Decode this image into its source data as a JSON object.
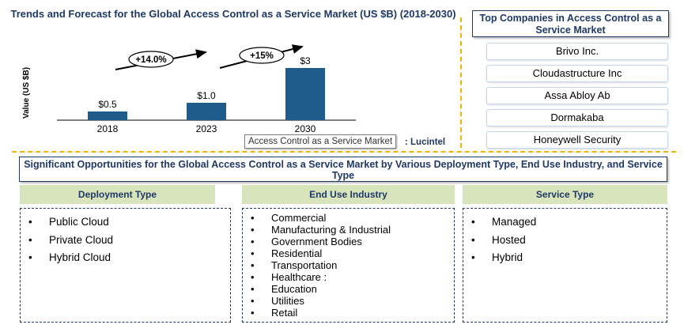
{
  "chart_data": {
    "type": "bar",
    "title": "Trends and Forecast for the Global Access Control as a Service Market (US $B) (2018-2030)",
    "ylabel": "Value (US $B)",
    "categories": [
      "2018",
      "2023",
      "2030"
    ],
    "values": [
      0.5,
      1.0,
      3.0
    ],
    "data_labels": [
      "$0.5",
      "$1.0",
      "$3"
    ],
    "growth_labels": [
      "+14.0%",
      "+15%"
    ],
    "bar_color": "#1f5c8b"
  },
  "tooltip": "Access Control as a Service Market",
  "source": ": Lucintel",
  "companies": {
    "title": "Top Companies in Access Control as a Service Market",
    "items": [
      "Brivo Inc.",
      "Cloudastructure Inc",
      "Assa Abloy Ab",
      "Dormakaba",
      "Honeywell Security"
    ]
  },
  "opportunities": {
    "title": "Significant Opportunities for the Global Access Control as a Service Market by Various Deployment Type, End Use Industry, and Service Type",
    "deployment": {
      "header": "Deployment Type",
      "items": [
        "Public Cloud",
        "Private Cloud",
        "Hybrid Cloud"
      ]
    },
    "end_use": {
      "header": "End Use Industry",
      "items": [
        "Commercial",
        "Manufacturing & Industrial",
        "Government Bodies",
        "Residential",
        "Transportation",
        "Healthcare :",
        "Education",
        "Utilities",
        "Retail"
      ]
    },
    "service": {
      "header": "Service Type",
      "items": [
        "Managed",
        "Hosted",
        "Hybrid"
      ]
    }
  }
}
